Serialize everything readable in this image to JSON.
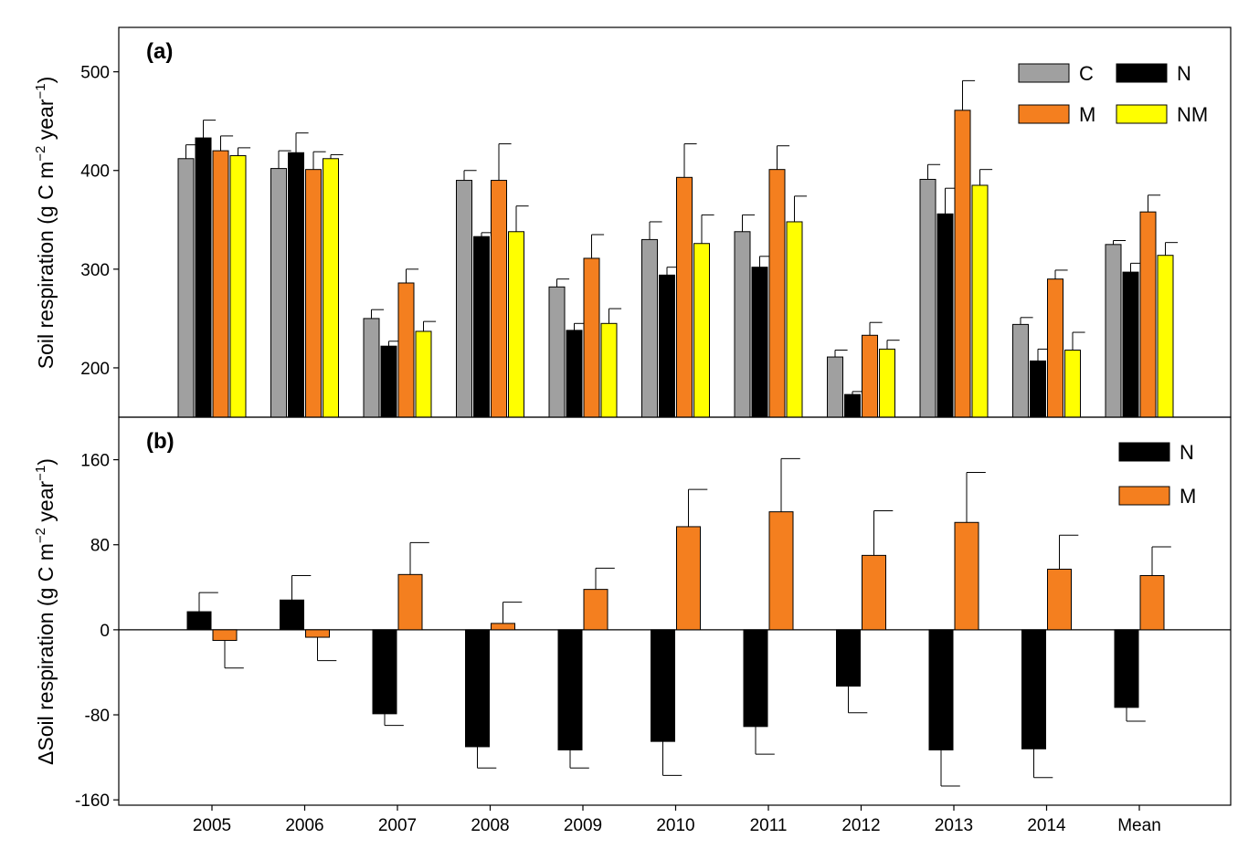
{
  "chart_data": [
    {
      "type": "bar",
      "panel_label": "(a)",
      "ylabel_parts": {
        "main": "Soil respiration (g C m",
        "sup1": "−2",
        "mid": " year",
        "sup2": "−1",
        "end": ")"
      },
      "categories": [
        "2005",
        "2006",
        "2007",
        "2008",
        "2009",
        "2010",
        "2011",
        "2012",
        "2013",
        "2014",
        "Mean"
      ],
      "ylim": [
        150,
        545
      ],
      "yticks": [
        200,
        300,
        400,
        500
      ],
      "legend_position": "top-right",
      "series": [
        {
          "name": "C",
          "color": "#a0a0a0",
          "values": [
            412,
            402,
            250,
            390,
            282,
            330,
            338,
            211,
            391,
            244,
            325
          ],
          "errors": [
            14,
            18,
            9,
            10,
            8,
            18,
            17,
            7,
            15,
            7,
            4
          ]
        },
        {
          "name": "N",
          "color": "#000000",
          "values": [
            433,
            418,
            222,
            333,
            238,
            294,
            302,
            173,
            356,
            207,
            297
          ],
          "errors": [
            18,
            20,
            5,
            4,
            7,
            8,
            11,
            3,
            26,
            12,
            9
          ]
        },
        {
          "name": "M",
          "color": "#f47f1f",
          "values": [
            420,
            401,
            286,
            390,
            311,
            393,
            401,
            233,
            461,
            290,
            358
          ],
          "errors": [
            15,
            18,
            14,
            37,
            24,
            34,
            24,
            13,
            30,
            9,
            17
          ]
        },
        {
          "name": "NM",
          "color": "#ffff00",
          "values": [
            415,
            412,
            237,
            338,
            245,
            326,
            348,
            219,
            385,
            218,
            314
          ],
          "errors": [
            8,
            4,
            10,
            26,
            15,
            29,
            26,
            9,
            16,
            18,
            13
          ]
        }
      ]
    },
    {
      "type": "bar",
      "panel_label": "(b)",
      "ylabel_parts": {
        "main": "ΔSoil respiration (g C m",
        "sup1": "−2",
        "mid": " year",
        "sup2": "−1",
        "end": ")"
      },
      "categories": [
        "2005",
        "2006",
        "2007",
        "2008",
        "2009",
        "2010",
        "2011",
        "2012",
        "2013",
        "2014",
        "Mean"
      ],
      "ylim": [
        -165,
        200
      ],
      "yticks": [
        -160,
        -80,
        0,
        80,
        160
      ],
      "legend_position": "top-right",
      "series": [
        {
          "name": "N",
          "color": "#000000",
          "values": [
            17,
            28,
            -79,
            -110,
            -113,
            -105,
            -91,
            -53,
            -113,
            -112,
            -73
          ],
          "errors": [
            18,
            23,
            11,
            20,
            17,
            32,
            26,
            25,
            34,
            27,
            13
          ]
        },
        {
          "name": "M",
          "color": "#f47f1f",
          "values": [
            -10,
            -7,
            52,
            6,
            38,
            97,
            111,
            70,
            101,
            57,
            51
          ],
          "errors": [
            26,
            22,
            30,
            20,
            20,
            35,
            50,
            42,
            47,
            32,
            27
          ]
        }
      ]
    }
  ]
}
